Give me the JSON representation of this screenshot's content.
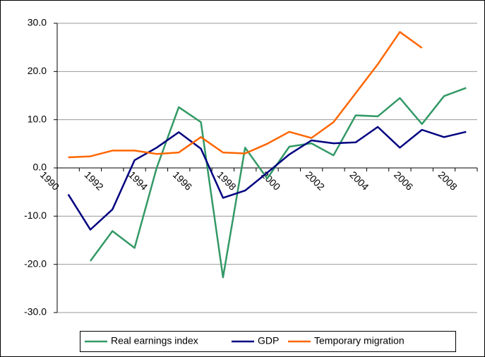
{
  "chart_data": {
    "type": "line",
    "categories": [
      "1990",
      null,
      "1992",
      null,
      "1994",
      null,
      "1996",
      null,
      "1998",
      null,
      "2000",
      null,
      "2002",
      null,
      "2004",
      null,
      "2006",
      null,
      "2008"
    ],
    "series": [
      {
        "name": "Real earnings index",
        "color": "#339966",
        "values": [
          null,
          -19.3,
          -13.1,
          -16.6,
          0.0,
          12.6,
          9.5,
          -22.7,
          4.2,
          -2.2,
          4.4,
          5.1,
          2.6,
          10.9,
          10.7,
          14.5,
          9.1,
          14.9,
          16.6
        ]
      },
      {
        "name": "GDP",
        "color": "#000080",
        "values": [
          -5.5,
          -12.8,
          -8.6,
          1.6,
          4.2,
          7.4,
          4.0,
          -6.2,
          -4.7,
          -1.0,
          2.8,
          5.7,
          5.1,
          5.3,
          8.5,
          4.2,
          7.9,
          6.4,
          7.5
        ]
      },
      {
        "name": "Temporary migration",
        "color": "#ff6600",
        "values": [
          2.2,
          2.4,
          3.6,
          3.6,
          2.9,
          3.2,
          6.4,
          3.2,
          3.0,
          5.0,
          7.5,
          6.2,
          9.5,
          15.5,
          21.5,
          28.2,
          24.9,
          null,
          null
        ]
      }
    ],
    "ylim": [
      -30,
      30
    ],
    "yticks": [
      {
        "value": -30,
        "label": "-30.0"
      },
      {
        "value": -20,
        "label": "-20.0"
      },
      {
        "value": -10,
        "label": "-10.0"
      },
      {
        "value": 0,
        "label": "0.0"
      },
      {
        "value": 10,
        "label": "10.0"
      },
      {
        "value": 20,
        "label": "20.0"
      },
      {
        "value": 30,
        "label": "30.0"
      }
    ],
    "grid": true,
    "legend": "bottom"
  }
}
